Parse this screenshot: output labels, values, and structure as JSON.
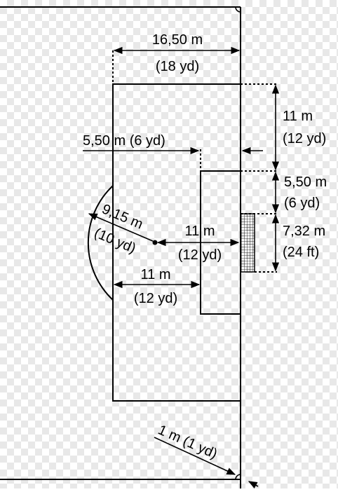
{
  "diagram": {
    "labels": {
      "box_width_m": "16,50 m",
      "box_width_yd": "(18 yd)",
      "box_depth_m": "11 m",
      "box_depth_yd": "(12 yd)",
      "goal_area_left_m_yd": "5,50 m (6 yd)",
      "goal_area_m": "5,50 m",
      "goal_area_yd": "(6 yd)",
      "goal_width_m": "7,32 m",
      "goal_width_ft": "(24 ft)",
      "arc_radius_m": "9,15 m",
      "arc_radius_yd": "(10 yd)",
      "penalty_spot_m": "11 m",
      "penalty_spot_yd": "(12 yd)",
      "penalty_dist_m": "11 m",
      "penalty_dist_yd": "(12 yd)",
      "corner_m_yd": "1 m (1 yd)"
    }
  }
}
